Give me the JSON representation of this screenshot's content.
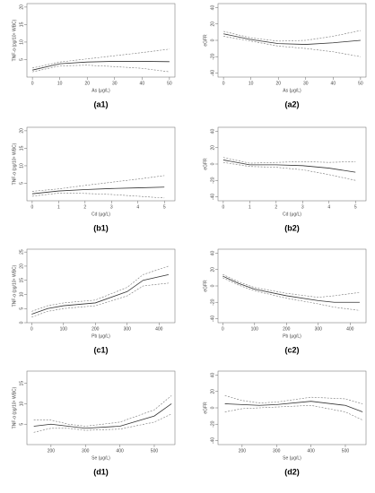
{
  "chart_data": [
    {
      "type": "line",
      "label": "(a1)",
      "x_label": "As (μg/L)",
      "y_label": "TNF-α (pg/10⁶ WBC)",
      "x": [
        0,
        10,
        20,
        30,
        40,
        50
      ],
      "xlim": [
        -2,
        52
      ],
      "xticks": [
        0,
        10,
        20,
        30,
        40,
        50
      ],
      "ylim": [
        0,
        21
      ],
      "yticks": [
        5,
        10,
        15,
        20
      ],
      "series": [
        {
          "color": "#333333",
          "dashed": false,
          "values": [
            2,
            3.8,
            4.3,
            4.5,
            4.5,
            4.4
          ]
        },
        {
          "color": "#777777",
          "dashed": true,
          "values": [
            1.5,
            3.2,
            3.4,
            3,
            2.5,
            1.5
          ]
        },
        {
          "color": "#777777",
          "dashed": true,
          "values": [
            2.6,
            4.3,
            5.2,
            6.1,
            7,
            8
          ]
        }
      ]
    },
    {
      "type": "line",
      "label": "(a2)",
      "x_label": "As (μg/L)",
      "y_label": "eGFR",
      "x": [
        0,
        10,
        20,
        30,
        40,
        50
      ],
      "xlim": [
        -2,
        52
      ],
      "xticks": [
        0,
        10,
        20,
        30,
        40,
        50
      ],
      "ylim": [
        -45,
        45
      ],
      "yticks": [
        -40,
        -20,
        0,
        20,
        40
      ],
      "series": [
        {
          "color": "#333333",
          "dashed": false,
          "values": [
            8,
            1,
            -4,
            -5,
            -3,
            0
          ]
        },
        {
          "color": "#777777",
          "dashed": true,
          "values": [
            5,
            -1,
            -7,
            -10,
            -14,
            -20
          ]
        },
        {
          "color": "#777777",
          "dashed": true,
          "values": [
            11,
            3,
            -1,
            0,
            5,
            12
          ]
        }
      ]
    },
    {
      "type": "line",
      "label": "(b1)",
      "x_label": "Cd (μg/L)",
      "y_label": "TNF-α (pg/10⁶ WBC)",
      "x": [
        0,
        1,
        2,
        3,
        4,
        5
      ],
      "xlim": [
        -0.2,
        5.4
      ],
      "xticks": [
        0,
        1,
        2,
        3,
        4,
        5
      ],
      "ylim": [
        0,
        21
      ],
      "yticks": [
        5,
        10,
        15,
        20
      ],
      "series": [
        {
          "color": "#333333",
          "dashed": false,
          "values": [
            2,
            2.8,
            3.2,
            3.5,
            3.7,
            3.9
          ]
        },
        {
          "color": "#777777",
          "dashed": true,
          "values": [
            1.3,
            2.2,
            2.1,
            1.8,
            1.3,
            0.8
          ]
        },
        {
          "color": "#777777",
          "dashed": true,
          "values": [
            2.7,
            3.4,
            4.4,
            5.3,
            6.2,
            7.2
          ]
        }
      ]
    },
    {
      "type": "line",
      "label": "(b2)",
      "x_label": "Cd (μg/L)",
      "y_label": "eGFR",
      "x": [
        0,
        1,
        2,
        3,
        4,
        5
      ],
      "xlim": [
        -0.2,
        5.4
      ],
      "xticks": [
        0,
        1,
        2,
        3,
        4,
        5
      ],
      "ylim": [
        -45,
        45
      ],
      "yticks": [
        -40,
        -20,
        0,
        20,
        40
      ],
      "series": [
        {
          "color": "#333333",
          "dashed": false,
          "values": [
            5,
            -1,
            -1,
            -2,
            -5,
            -10
          ]
        },
        {
          "color": "#777777",
          "dashed": true,
          "values": [
            2,
            -3,
            -4,
            -7,
            -13,
            -20
          ]
        },
        {
          "color": "#777777",
          "dashed": true,
          "values": [
            8,
            1,
            2,
            3,
            2,
            3
          ]
        }
      ]
    },
    {
      "type": "line",
      "label": "(c1)",
      "x_label": "Pb (μg/L)",
      "y_label": "TNF-α (pg/10⁶ WBC)",
      "x": [
        0,
        50,
        100,
        200,
        300,
        350,
        430
      ],
      "xlim": [
        -15,
        450
      ],
      "xticks": [
        0,
        100,
        200,
        300,
        400
      ],
      "ylim": [
        0,
        26
      ],
      "yticks": [
        0,
        5,
        10,
        15,
        20,
        25
      ],
      "series": [
        {
          "color": "#333333",
          "dashed": false,
          "values": [
            3,
            5,
            6,
            7,
            11,
            15,
            17
          ]
        },
        {
          "color": "#777777",
          "dashed": true,
          "values": [
            2,
            4,
            5,
            6,
            9.5,
            13,
            14
          ]
        },
        {
          "color": "#777777",
          "dashed": true,
          "values": [
            4,
            6,
            7,
            8,
            12.5,
            17,
            20
          ]
        }
      ]
    },
    {
      "type": "line",
      "label": "(c2)",
      "x_label": "Pb (μg/L)",
      "y_label": "eGFR",
      "x": [
        0,
        50,
        100,
        200,
        300,
        350,
        430
      ],
      "xlim": [
        -15,
        450
      ],
      "xticks": [
        0,
        100,
        200,
        300,
        400
      ],
      "ylim": [
        -45,
        45
      ],
      "yticks": [
        -40,
        -20,
        0,
        20,
        40
      ],
      "series": [
        {
          "color": "#333333",
          "dashed": false,
          "values": [
            12,
            3,
            -4,
            -12,
            -18,
            -20,
            -20
          ]
        },
        {
          "color": "#777777",
          "dashed": true,
          "values": [
            10,
            1,
            -6,
            -15,
            -22,
            -26,
            -30
          ]
        },
        {
          "color": "#777777",
          "dashed": true,
          "values": [
            14,
            5,
            -2,
            -9,
            -14,
            -12,
            -8
          ]
        }
      ]
    },
    {
      "type": "line",
      "label": "(d1)",
      "x_label": "Se (μg/L)",
      "y_label": "TNF-α (pg/10⁶ WBC)",
      "x": [
        150,
        200,
        250,
        300,
        400,
        500,
        550
      ],
      "xlim": [
        130,
        560
      ],
      "xticks": [
        200,
        300,
        400,
        500
      ],
      "ylim": [
        0,
        18
      ],
      "yticks": [
        5,
        10,
        15
      ],
      "series": [
        {
          "color": "#333333",
          "dashed": false,
          "values": [
            4.5,
            5,
            4.5,
            4,
            4.5,
            7,
            10
          ]
        },
        {
          "color": "#777777",
          "dashed": true,
          "values": [
            3,
            4,
            4,
            3.5,
            3.8,
            5.5,
            7.5
          ]
        },
        {
          "color": "#777777",
          "dashed": true,
          "values": [
            6,
            6,
            5,
            4.5,
            5.5,
            8.5,
            12
          ]
        }
      ]
    },
    {
      "type": "line",
      "label": "(d2)",
      "x_label": "Se (μg/L)",
      "y_label": "eGFR",
      "x": [
        150,
        200,
        250,
        300,
        400,
        500,
        550
      ],
      "xlim": [
        130,
        560
      ],
      "xticks": [
        200,
        300,
        400,
        500
      ],
      "ylim": [
        -45,
        45
      ],
      "yticks": [
        -40,
        -20,
        0,
        20,
        40
      ],
      "series": [
        {
          "color": "#333333",
          "dashed": false,
          "values": [
            5,
            4,
            3,
            4,
            8,
            3,
            -5
          ]
        },
        {
          "color": "#777777",
          "dashed": true,
          "values": [
            -5,
            -1,
            0,
            1,
            3,
            -5,
            -15
          ]
        },
        {
          "color": "#777777",
          "dashed": true,
          "values": [
            15,
            9,
            6,
            7,
            13,
            11,
            5
          ]
        }
      ]
    }
  ]
}
